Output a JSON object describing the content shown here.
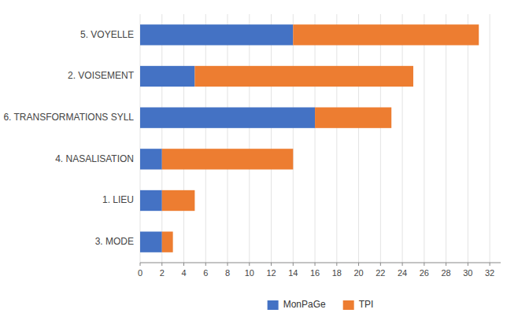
{
  "chart_data": {
    "type": "bar",
    "orientation": "horizontal",
    "stacked": true,
    "categories": [
      "3. MODE",
      "1. LIEU",
      "4. NASALISATION",
      "6. TRANSFORMATIONS SYLL",
      "2. VOISEMENT",
      "5. VOYELLE"
    ],
    "series": [
      {
        "name": "MonPaGe",
        "color": "#4472C4",
        "values": [
          2,
          2,
          2,
          16,
          5,
          14
        ]
      },
      {
        "name": "TPI",
        "color": "#ED7D31",
        "values": [
          1,
          3,
          12,
          7,
          20,
          17
        ]
      }
    ],
    "xlim": [
      0,
      33
    ],
    "xticks": [
      0,
      2,
      4,
      6,
      8,
      10,
      12,
      14,
      16,
      18,
      20,
      22,
      24,
      26,
      28,
      30,
      32
    ],
    "grid": true,
    "legend": "bottom"
  }
}
